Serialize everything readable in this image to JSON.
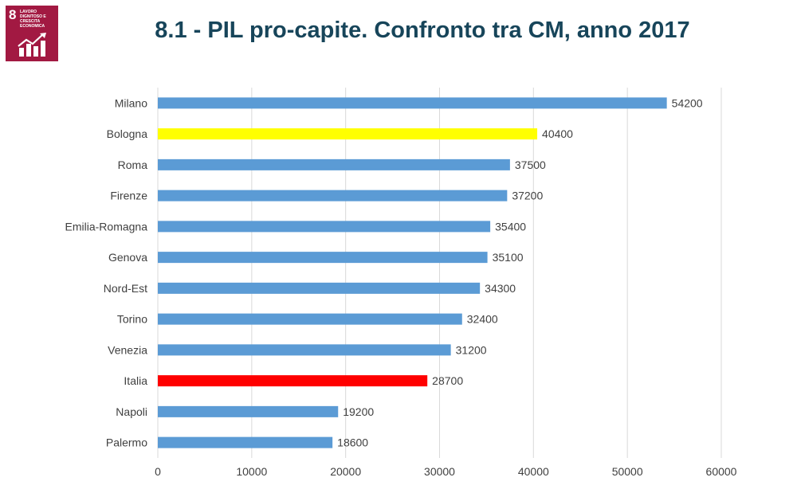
{
  "badge": {
    "number": "8",
    "text": "LAVORO DIGNITOSO E CRESCITA ECONOMICA",
    "icon": "growth-chart-icon",
    "color": "#a21942"
  },
  "header": {
    "title": "8.1 - PIL pro-capite. Confronto tra CM, anno 2017"
  },
  "chart_data": {
    "type": "bar",
    "orientation": "horizontal",
    "categories": [
      "Milano",
      "Bologna",
      "Roma",
      "Firenze",
      "Emilia-Romagna",
      "Genova",
      "Nord-Est",
      "Torino",
      "Venezia",
      "Italia",
      "Napoli",
      "Palermo"
    ],
    "values": [
      54200,
      40400,
      37500,
      37200,
      35400,
      35100,
      34300,
      32400,
      31200,
      28700,
      19200,
      18600
    ],
    "data_labels": [
      "54200",
      "40400",
      "37500",
      "37200",
      "35400",
      "35100",
      "34300",
      "32400",
      "31200",
      "28700",
      "19200",
      "18600"
    ],
    "colors": [
      "#5b9bd5",
      "#ffff00",
      "#5b9bd5",
      "#5b9bd5",
      "#5b9bd5",
      "#5b9bd5",
      "#5b9bd5",
      "#5b9bd5",
      "#5b9bd5",
      "#ff0000",
      "#5b9bd5",
      "#5b9bd5"
    ],
    "xlim": [
      0,
      60000
    ],
    "x_ticks": [
      0,
      10000,
      20000,
      30000,
      40000,
      50000,
      60000
    ],
    "x_tick_labels": [
      "0",
      "10000",
      "20000",
      "30000",
      "40000",
      "50000",
      "60000"
    ],
    "grid": true,
    "title": "",
    "xlabel": "",
    "ylabel": ""
  }
}
